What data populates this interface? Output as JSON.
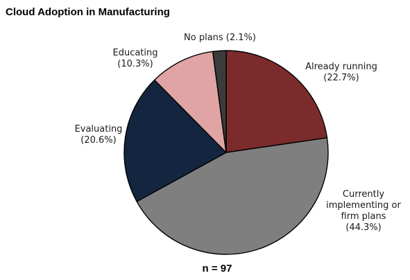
{
  "chart_data": {
    "type": "pie",
    "title": "Cloud Adoption in Manufacturing",
    "note": "n = 97",
    "legend": "none",
    "slices": [
      {
        "key": "already-running",
        "label_lines": [
          "Already running",
          "(22.7%)"
        ],
        "value": 22.7,
        "color": "#7b2b2b"
      },
      {
        "key": "currently-implementing",
        "label_lines": [
          "Currently",
          "implementing or",
          "firm plans",
          "(44.3%)"
        ],
        "value": 44.3,
        "color": "#7f7f7f"
      },
      {
        "key": "evaluating",
        "label_lines": [
          "Evaluating",
          "(20.6%)"
        ],
        "value": 20.6,
        "color": "#14263f"
      },
      {
        "key": "educating",
        "label_lines": [
          "Educating",
          "(10.3%)"
        ],
        "value": 10.3,
        "color": "#e0a4a4"
      },
      {
        "key": "no-plans",
        "label_lines": [
          "No plans (2.1%)"
        ],
        "value": 2.1,
        "color": "#3b3b3b"
      }
    ]
  }
}
